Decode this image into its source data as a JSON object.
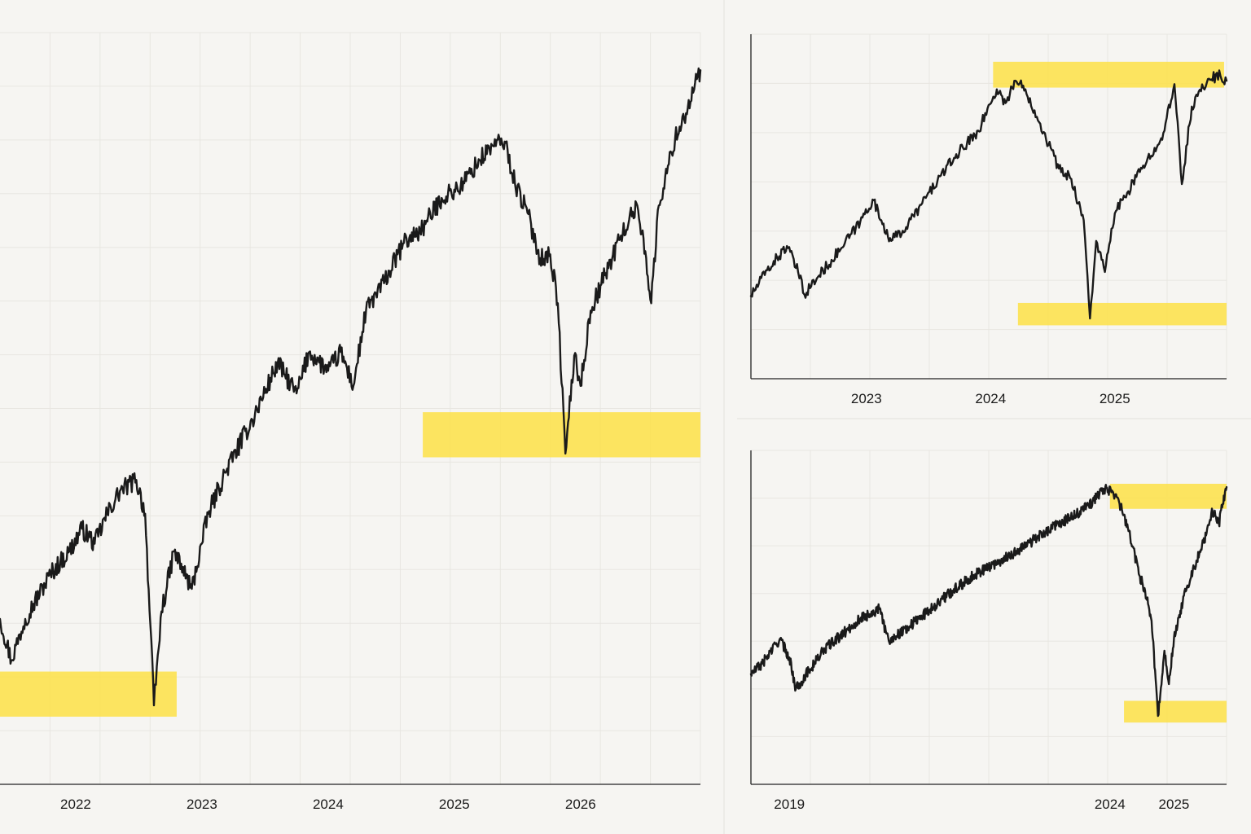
{
  "colors": {
    "background": "#f6f5f2",
    "line": "#1a1a1a",
    "highlight": "#fde047",
    "grid": "#e8e6e1",
    "axis": "#222222",
    "separator": "#e3e1dc"
  },
  "chart_data": [
    {
      "name": "main",
      "type": "line",
      "title": "",
      "xlabel": "",
      "ylabel": "",
      "grid": true,
      "xlim": [
        2021.4,
        2026.95
      ],
      "ylim": [
        0,
        100
      ],
      "ticks": [
        {
          "pos": 2022,
          "label": "2022"
        },
        {
          "pos": 2023,
          "label": "2023"
        },
        {
          "pos": 2024,
          "label": "2024"
        },
        {
          "pos": 2025,
          "label": "2025"
        },
        {
          "pos": 2026,
          "label": "2026"
        }
      ],
      "anchors": [
        [
          2021.4,
          22.0
        ],
        [
          2021.49,
          16.5
        ],
        [
          2021.6,
          22.0
        ],
        [
          2021.8,
          28.0
        ],
        [
          2021.95,
          31.0
        ],
        [
          2022.05,
          34.0
        ],
        [
          2022.15,
          32.0
        ],
        [
          2022.25,
          36.0
        ],
        [
          2022.35,
          39.0
        ],
        [
          2022.48,
          40.5
        ],
        [
          2022.55,
          36.0
        ],
        [
          2022.62,
          10.5
        ],
        [
          2022.68,
          23.0
        ],
        [
          2022.78,
          31.0
        ],
        [
          2022.92,
          26.0
        ],
        [
          2023.05,
          36.0
        ],
        [
          2023.2,
          42.0
        ],
        [
          2023.4,
          48.5
        ],
        [
          2023.6,
          56.0
        ],
        [
          2023.75,
          52.0
        ],
        [
          2023.85,
          57.5
        ],
        [
          2024.0,
          55.0
        ],
        [
          2024.1,
          57.5
        ],
        [
          2024.2,
          53.0
        ],
        [
          2024.3,
          63.0
        ],
        [
          2024.45,
          67.0
        ],
        [
          2024.6,
          72.0
        ],
        [
          2024.75,
          74.0
        ],
        [
          2024.9,
          78.0
        ],
        [
          2025.05,
          79.5
        ],
        [
          2025.2,
          83.0
        ],
        [
          2025.3,
          85.0
        ],
        [
          2025.4,
          85.5
        ],
        [
          2025.48,
          80.0
        ],
        [
          2025.58,
          76.0
        ],
        [
          2025.68,
          70.0
        ],
        [
          2025.76,
          70.5
        ],
        [
          2025.82,
          64.0
        ],
        [
          2025.88,
          44.0
        ],
        [
          2025.95,
          57.0
        ],
        [
          2026.0,
          53.0
        ],
        [
          2026.08,
          63.0
        ],
        [
          2026.2,
          68.0
        ],
        [
          2026.32,
          73.0
        ],
        [
          2026.45,
          77.0
        ],
        [
          2026.52,
          70.0
        ],
        [
          2026.56,
          64.0
        ],
        [
          2026.62,
          77.0
        ],
        [
          2026.75,
          86.0
        ],
        [
          2026.85,
          90.0
        ],
        [
          2026.95,
          95.0
        ]
      ],
      "highlights": [
        {
          "label": "low-2022",
          "x_range": [
            2021.4,
            2022.8
          ],
          "y_range": [
            9.0,
            15.0
          ]
        },
        {
          "label": "low-2025",
          "x_range": [
            2024.75,
            2026.95
          ],
          "y_range": [
            43.5,
            49.5
          ]
        }
      ]
    },
    {
      "name": "top-right",
      "type": "line",
      "title": "",
      "xlabel": "",
      "ylabel": "",
      "grid": true,
      "xlim": [
        2022.07,
        2025.9
      ],
      "ylim": [
        0,
        100
      ],
      "ticks": [
        {
          "pos": 2023,
          "label": "2023"
        },
        {
          "pos": 2024,
          "label": "2024"
        },
        {
          "pos": 2025,
          "label": "2025"
        }
      ],
      "anchors": [
        [
          2022.07,
          24.0
        ],
        [
          2022.2,
          31.5
        ],
        [
          2022.36,
          38.5
        ],
        [
          2022.45,
          31.0
        ],
        [
          2022.5,
          24.5
        ],
        [
          2022.62,
          30.0
        ],
        [
          2022.8,
          38.0
        ],
        [
          2022.95,
          45.5
        ],
        [
          2023.05,
          52.0
        ],
        [
          2023.12,
          46.0
        ],
        [
          2023.2,
          40.0
        ],
        [
          2023.32,
          44.0
        ],
        [
          2023.45,
          51.0
        ],
        [
          2023.6,
          59.0
        ],
        [
          2023.75,
          66.0
        ],
        [
          2023.9,
          72.0
        ],
        [
          2024.05,
          84.0
        ],
        [
          2024.12,
          80.0
        ],
        [
          2024.2,
          86.5
        ],
        [
          2024.28,
          84.0
        ],
        [
          2024.4,
          74.0
        ],
        [
          2024.55,
          61.0
        ],
        [
          2024.65,
          58.0
        ],
        [
          2024.75,
          46.0
        ],
        [
          2024.8,
          17.5
        ],
        [
          2024.85,
          40.0
        ],
        [
          2024.92,
          31.0
        ],
        [
          2025.0,
          48.0
        ],
        [
          2025.1,
          54.0
        ],
        [
          2025.22,
          61.0
        ],
        [
          2025.32,
          67.0
        ],
        [
          2025.4,
          72.0
        ],
        [
          2025.48,
          85.5
        ],
        [
          2025.54,
          56.5
        ],
        [
          2025.62,
          79.0
        ],
        [
          2025.75,
          87.0
        ],
        [
          2025.85,
          88.0
        ],
        [
          2025.9,
          86.5
        ]
      ],
      "highlights": [
        {
          "label": "recent-high",
          "x_range": [
            2024.02,
            2025.88
          ],
          "y_range": [
            84.5,
            92.0
          ]
        },
        {
          "label": "recent-low",
          "x_range": [
            2024.22,
            2025.9
          ],
          "y_range": [
            15.5,
            22.0
          ]
        }
      ]
    },
    {
      "name": "bottom-right",
      "type": "line",
      "title": "",
      "xlabel": "",
      "ylabel": "",
      "grid": true,
      "xlim": [
        2018.4,
        2025.82
      ],
      "ylim": [
        0,
        100
      ],
      "ticks": [
        {
          "pos": 2019,
          "label": "2019"
        },
        {
          "pos": 2024,
          "label": "2024"
        },
        {
          "pos": 2025,
          "label": "2025"
        }
      ],
      "anchors": [
        [
          2018.4,
          33.0
        ],
        [
          2018.57,
          36.0
        ],
        [
          2018.85,
          43.5
        ],
        [
          2019.0,
          38.0
        ],
        [
          2019.1,
          28.5
        ],
        [
          2019.3,
          34.0
        ],
        [
          2019.55,
          40.5
        ],
        [
          2019.8,
          44.5
        ],
        [
          2020.1,
          49.5
        ],
        [
          2020.4,
          52.5
        ],
        [
          2020.55,
          43.0
        ],
        [
          2020.85,
          47.0
        ],
        [
          2021.2,
          52.5
        ],
        [
          2021.55,
          58.0
        ],
        [
          2021.9,
          63.0
        ],
        [
          2022.3,
          67.0
        ],
        [
          2022.65,
          71.0
        ],
        [
          2022.95,
          75.0
        ],
        [
          2023.2,
          78.0
        ],
        [
          2023.5,
          81.0
        ],
        [
          2023.75,
          85.0
        ],
        [
          2023.9,
          88.5
        ],
        [
          2024.05,
          87.5
        ],
        [
          2024.15,
          84.0
        ],
        [
          2024.3,
          76.0
        ],
        [
          2024.45,
          63.0
        ],
        [
          2024.55,
          58.0
        ],
        [
          2024.65,
          49.0
        ],
        [
          2024.75,
          20.5
        ],
        [
          2024.85,
          40.0
        ],
        [
          2024.92,
          30.0
        ],
        [
          2025.0,
          44.0
        ],
        [
          2025.1,
          52.0
        ],
        [
          2025.2,
          59.0
        ],
        [
          2025.35,
          67.0
        ],
        [
          2025.5,
          74.5
        ],
        [
          2025.6,
          82.0
        ],
        [
          2025.7,
          78.0
        ],
        [
          2025.76,
          84.0
        ],
        [
          2025.82,
          89.0
        ]
      ],
      "highlights": [
        {
          "label": "recent-high",
          "x_range": [
            2024.0,
            2025.82
          ],
          "y_range": [
            82.5,
            90.0
          ]
        },
        {
          "label": "recent-low",
          "x_range": [
            2024.22,
            2025.82
          ],
          "y_range": [
            18.5,
            25.0
          ]
        }
      ]
    }
  ]
}
